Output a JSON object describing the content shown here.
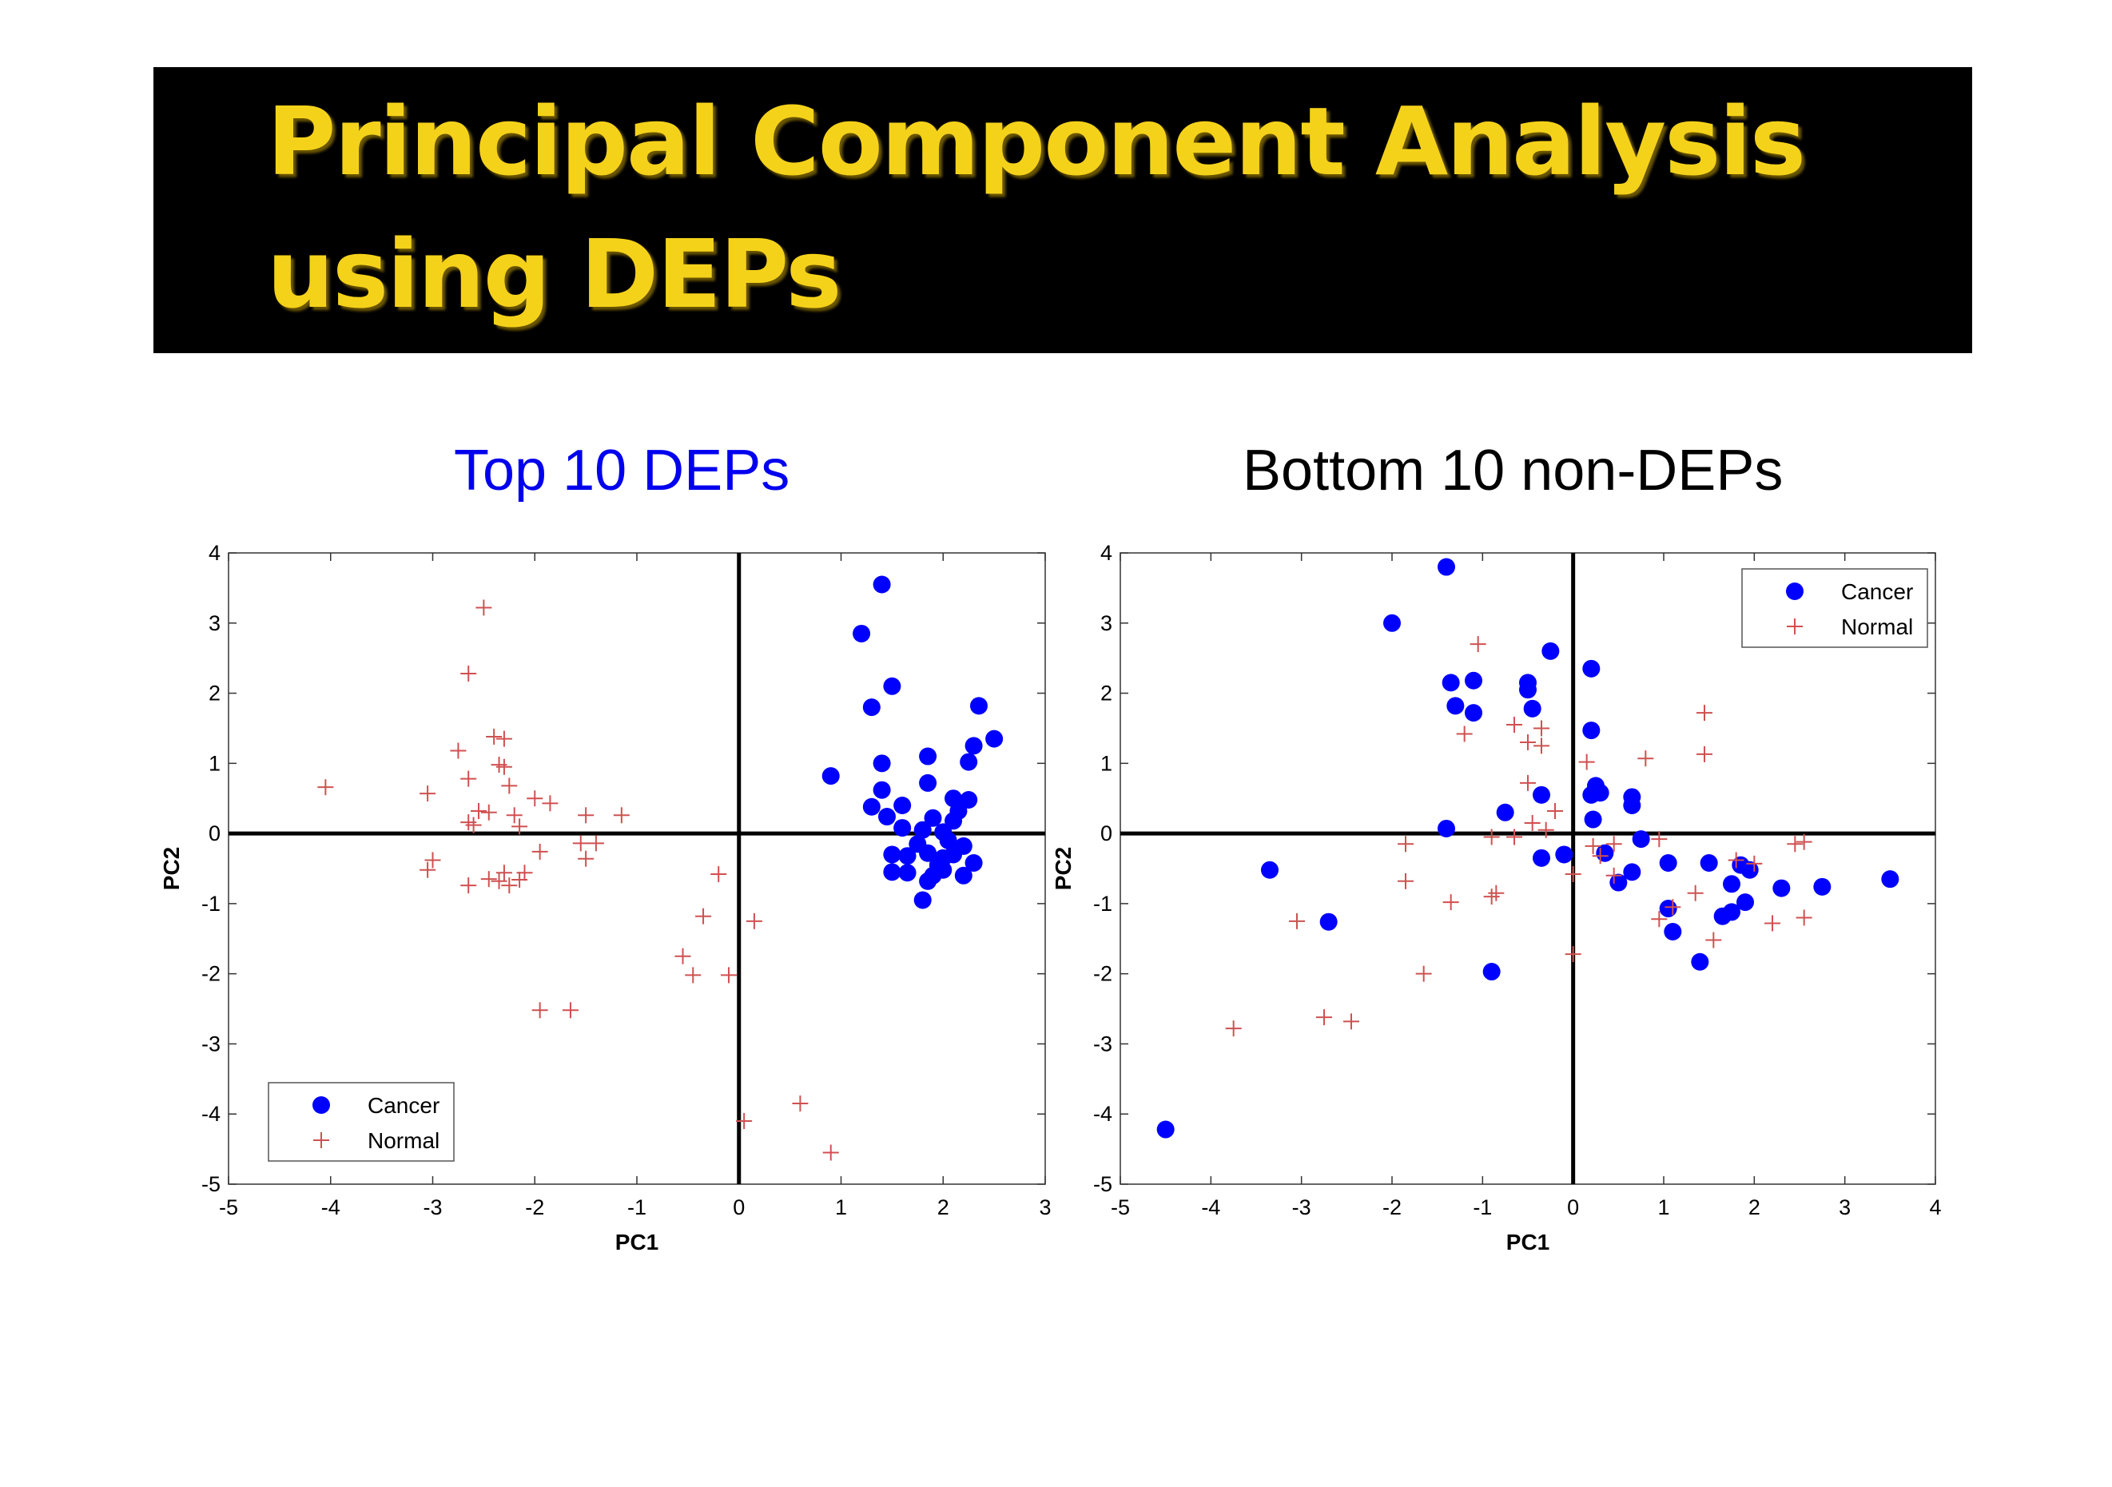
{
  "slide": {
    "title_line_1": "Principal Component Analysis",
    "title_line_2": "using DEPs",
    "title_color": "#f5d21a",
    "banner_color": "#000000"
  },
  "chart_data": [
    {
      "type": "scatter",
      "title": "Top 10 DEPs",
      "title_color": "#0000ee",
      "xlabel": "PC1",
      "ylabel": "PC2",
      "xlim": [
        -5,
        3
      ],
      "ylim": [
        -5,
        4
      ],
      "xticks": [
        "-5",
        "-4",
        "-3",
        "-2",
        "-1",
        "0",
        "1",
        "2",
        "3"
      ],
      "yticks": [
        "-5",
        "-4",
        "-3",
        "-2",
        "-1",
        "0",
        "1",
        "2",
        "3",
        "4"
      ],
      "legend_position": "bottom-left",
      "series": [
        {
          "name": "Cancer",
          "marker": "filled-circle",
          "color": "#0000ff",
          "points": [
            [
              1.4,
              3.55
            ],
            [
              1.2,
              2.85
            ],
            [
              1.5,
              2.1
            ],
            [
              1.3,
              1.8
            ],
            [
              2.35,
              1.82
            ],
            [
              2.5,
              1.35
            ],
            [
              2.3,
              1.25
            ],
            [
              1.85,
              1.1
            ],
            [
              2.25,
              1.02
            ],
            [
              1.4,
              1.0
            ],
            [
              0.9,
              0.82
            ],
            [
              1.85,
              0.72
            ],
            [
              1.4,
              0.62
            ],
            [
              2.1,
              0.5
            ],
            [
              2.25,
              0.48
            ],
            [
              1.3,
              0.38
            ],
            [
              1.6,
              0.4
            ],
            [
              2.15,
              0.32
            ],
            [
              1.45,
              0.24
            ],
            [
              1.9,
              0.22
            ],
            [
              2.1,
              0.18
            ],
            [
              1.6,
              0.08
            ],
            [
              1.8,
              0.05
            ],
            [
              2.0,
              0.02
            ],
            [
              2.05,
              -0.1
            ],
            [
              1.75,
              -0.15
            ],
            [
              2.2,
              -0.18
            ],
            [
              1.5,
              -0.3
            ],
            [
              1.65,
              -0.32
            ],
            [
              1.85,
              -0.28
            ],
            [
              2.0,
              -0.35
            ],
            [
              2.1,
              -0.3
            ],
            [
              2.3,
              -0.42
            ],
            [
              1.95,
              -0.45
            ],
            [
              1.5,
              -0.55
            ],
            [
              1.65,
              -0.56
            ],
            [
              1.9,
              -0.6
            ],
            [
              2.0,
              -0.52
            ],
            [
              2.2,
              -0.6
            ],
            [
              1.85,
              -0.68
            ],
            [
              1.8,
              -0.95
            ]
          ]
        },
        {
          "name": "Normal",
          "marker": "plus",
          "color": "#d05050",
          "points": [
            [
              -2.5,
              3.22
            ],
            [
              -2.65,
              2.28
            ],
            [
              -2.75,
              1.18
            ],
            [
              -2.4,
              1.38
            ],
            [
              -2.3,
              1.35
            ],
            [
              -2.35,
              0.98
            ],
            [
              -2.3,
              0.95
            ],
            [
              -2.65,
              0.78
            ],
            [
              -2.25,
              0.68
            ],
            [
              -4.05,
              0.66
            ],
            [
              -3.05,
              0.57
            ],
            [
              -2.0,
              0.5
            ],
            [
              -1.85,
              0.43
            ],
            [
              -2.55,
              0.32
            ],
            [
              -2.45,
              0.3
            ],
            [
              -2.2,
              0.26
            ],
            [
              -1.5,
              0.26
            ],
            [
              -1.15,
              0.26
            ],
            [
              -2.65,
              0.16
            ],
            [
              -2.6,
              0.12
            ],
            [
              -2.15,
              0.1
            ],
            [
              -1.55,
              -0.14
            ],
            [
              -1.4,
              -0.14
            ],
            [
              -1.95,
              -0.26
            ],
            [
              -1.5,
              -0.36
            ],
            [
              -3.0,
              -0.38
            ],
            [
              -3.05,
              -0.52
            ],
            [
              -2.3,
              -0.56
            ],
            [
              -2.1,
              -0.56
            ],
            [
              -2.45,
              -0.65
            ],
            [
              -2.35,
              -0.68
            ],
            [
              -2.15,
              -0.66
            ],
            [
              -2.65,
              -0.74
            ],
            [
              -2.25,
              -0.74
            ],
            [
              -0.2,
              -0.58
            ],
            [
              -0.35,
              -1.18
            ],
            [
              0.15,
              -1.25
            ],
            [
              -0.55,
              -1.75
            ],
            [
              -0.45,
              -2.02
            ],
            [
              -0.1,
              -2.02
            ],
            [
              -1.95,
              -2.52
            ],
            [
              -1.65,
              -2.52
            ],
            [
              0.05,
              -4.1
            ],
            [
              0.6,
              -3.85
            ],
            [
              0.9,
              -4.55
            ]
          ]
        }
      ]
    },
    {
      "type": "scatter",
      "title": "Bottom 10 non-DEPs",
      "title_color": "#000000",
      "xlabel": "PC1",
      "ylabel": "PC2",
      "xlim": [
        -5,
        4
      ],
      "ylim": [
        -5,
        4
      ],
      "xticks": [
        "-5",
        "-4",
        "-3",
        "-2",
        "-1",
        "0",
        "1",
        "2",
        "3",
        "4"
      ],
      "yticks": [
        "-5",
        "-4",
        "-3",
        "-2",
        "-1",
        "0",
        "1",
        "2",
        "3",
        "4"
      ],
      "legend_position": "top-right",
      "series": [
        {
          "name": "Cancer",
          "marker": "filled-circle",
          "color": "#0000ff",
          "points": [
            [
              -1.4,
              3.8
            ],
            [
              -2.0,
              3.0
            ],
            [
              -0.25,
              2.6
            ],
            [
              0.2,
              2.35
            ],
            [
              -1.35,
              2.15
            ],
            [
              -1.1,
              2.18
            ],
            [
              -0.5,
              2.15
            ],
            [
              -0.5,
              2.05
            ],
            [
              -1.3,
              1.82
            ],
            [
              -1.1,
              1.72
            ],
            [
              -0.45,
              1.78
            ],
            [
              0.2,
              1.47
            ],
            [
              0.25,
              0.68
            ],
            [
              0.3,
              0.58
            ],
            [
              0.2,
              0.55
            ],
            [
              0.65,
              0.52
            ],
            [
              -0.35,
              0.55
            ],
            [
              0.65,
              0.4
            ],
            [
              -0.75,
              0.3
            ],
            [
              0.22,
              0.2
            ],
            [
              -1.4,
              0.07
            ],
            [
              0.75,
              -0.08
            ],
            [
              0.35,
              -0.28
            ],
            [
              -0.1,
              -0.3
            ],
            [
              -0.35,
              -0.35
            ],
            [
              1.05,
              -0.42
            ],
            [
              1.5,
              -0.42
            ],
            [
              1.85,
              -0.45
            ],
            [
              1.95,
              -0.52
            ],
            [
              0.65,
              -0.55
            ],
            [
              -3.35,
              -0.52
            ],
            [
              0.5,
              -0.7
            ],
            [
              1.75,
              -0.72
            ],
            [
              2.3,
              -0.78
            ],
            [
              2.75,
              -0.76
            ],
            [
              3.5,
              -0.65
            ],
            [
              1.9,
              -0.98
            ],
            [
              1.05,
              -1.07
            ],
            [
              1.65,
              -1.18
            ],
            [
              1.75,
              -1.12
            ],
            [
              -2.7,
              -1.26
            ],
            [
              1.1,
              -1.4
            ],
            [
              1.4,
              -1.83
            ],
            [
              -0.9,
              -1.97
            ],
            [
              -4.5,
              -4.22
            ]
          ]
        },
        {
          "name": "Normal",
          "marker": "plus",
          "color": "#d05050",
          "points": [
            [
              -1.05,
              2.7
            ],
            [
              1.45,
              1.72
            ],
            [
              -0.65,
              1.55
            ],
            [
              -0.35,
              1.5
            ],
            [
              -1.2,
              1.42
            ],
            [
              -0.5,
              1.3
            ],
            [
              -0.35,
              1.25
            ],
            [
              1.45,
              1.13
            ],
            [
              0.8,
              1.07
            ],
            [
              0.15,
              1.02
            ],
            [
              -0.5,
              0.72
            ],
            [
              -0.2,
              0.32
            ],
            [
              -0.45,
              0.15
            ],
            [
              -0.3,
              0.05
            ],
            [
              -0.65,
              -0.05
            ],
            [
              -0.9,
              -0.05
            ],
            [
              0.95,
              -0.08
            ],
            [
              -1.85,
              -0.15
            ],
            [
              0.45,
              -0.15
            ],
            [
              0.22,
              -0.18
            ],
            [
              2.55,
              -0.12
            ],
            [
              2.45,
              -0.15
            ],
            [
              0.3,
              -0.32
            ],
            [
              1.8,
              -0.38
            ],
            [
              2.0,
              -0.43
            ],
            [
              0.0,
              -0.58
            ],
            [
              0.45,
              -0.6
            ],
            [
              -1.85,
              -0.68
            ],
            [
              -0.85,
              -0.85
            ],
            [
              -0.9,
              -0.9
            ],
            [
              1.35,
              -0.85
            ],
            [
              -1.35,
              -0.98
            ],
            [
              1.1,
              -1.05
            ],
            [
              -3.05,
              -1.25
            ],
            [
              2.2,
              -1.28
            ],
            [
              2.55,
              -1.2
            ],
            [
              0.95,
              -1.22
            ],
            [
              1.55,
              -1.52
            ],
            [
              0.0,
              -1.72
            ],
            [
              -1.65,
              -2.0
            ],
            [
              -2.75,
              -2.62
            ],
            [
              -2.45,
              -2.68
            ],
            [
              -3.75,
              -2.78
            ]
          ]
        }
      ]
    }
  ]
}
